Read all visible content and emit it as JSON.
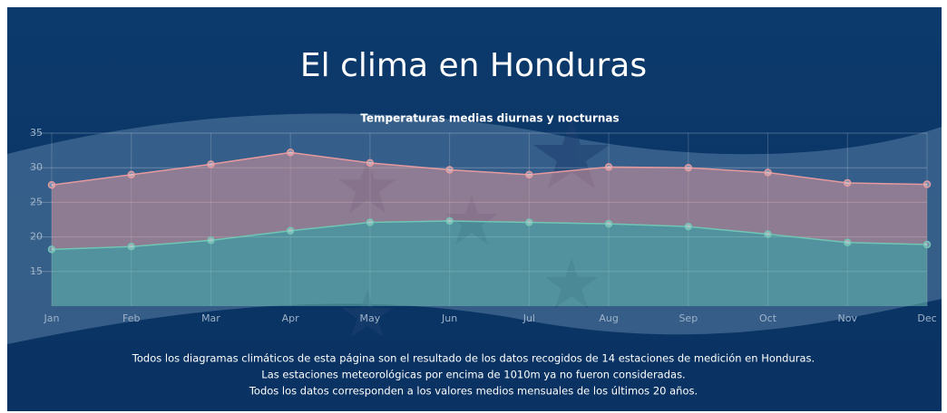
{
  "title": "El clima en Honduras",
  "chart_data": {
    "type": "line",
    "fill": true,
    "title": "Temperaturas medias diurnas y nocturnas",
    "categories": [
      "Jan",
      "Feb",
      "Mar",
      "Apr",
      "May",
      "Jun",
      "Jul",
      "Aug",
      "Sep",
      "Oct",
      "Nov",
      "Dec"
    ],
    "series": [
      {
        "color": "#e79a9e",
        "values": [
          27.5,
          29,
          30.5,
          32.2,
          30.7,
          29.7,
          29,
          30.1,
          30,
          29.3,
          27.8,
          27.6
        ]
      },
      {
        "color": "#6fc6b4",
        "values": [
          18.2,
          18.6,
          19.5,
          20.9,
          22.1,
          22.3,
          22.1,
          21.9,
          21.5,
          20.4,
          19.2,
          18.9
        ]
      }
    ],
    "ylim": [
      10,
      35
    ],
    "yticks": [
      15,
      20,
      25,
      30,
      35
    ],
    "grid": true
  },
  "footer": [
    "Todos los diagramas climáticos de esta página son el resultado de los datos recogidos de 14 estaciones de medición en Honduras.",
    "Las estaciones meteorológicas por encima de 1010m ya no fueron consideradas.",
    "Todos los datos corresponden a los valores medios mensuales de los últimos 20 años."
  ]
}
